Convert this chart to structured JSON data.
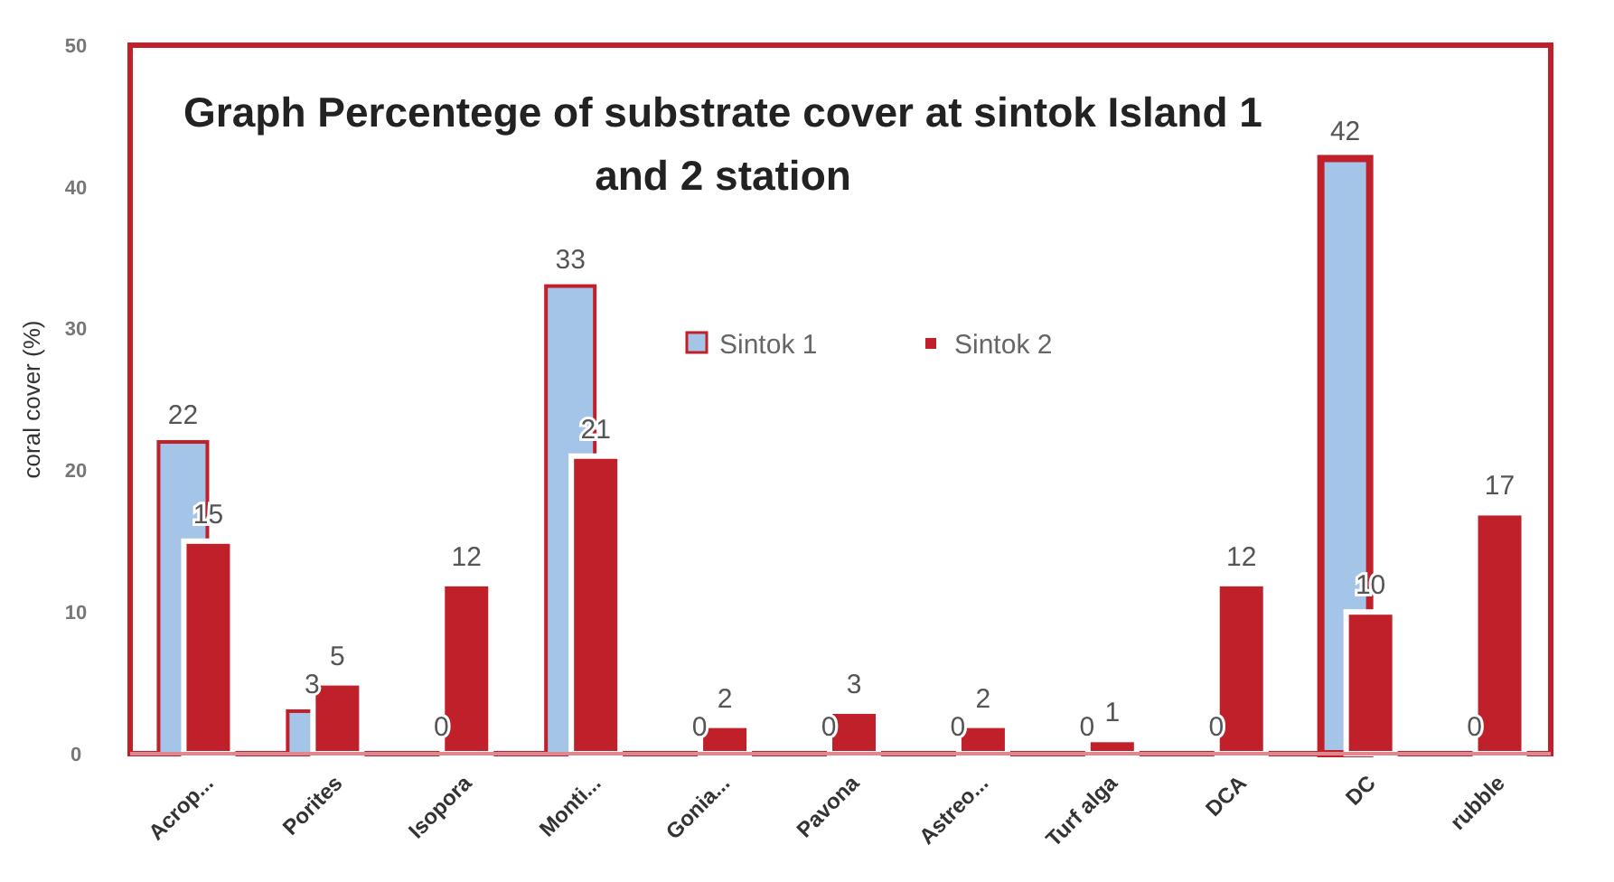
{
  "chart_data": {
    "type": "bar",
    "title": "Graph Percentege of substrate cover at sintok Island 1 and 2 station",
    "ylabel": "coral cover (%)",
    "categories": [
      "Acrop...",
      "Porites",
      "Isopora",
      "Monti...",
      "Gonia...",
      "Pavona",
      "Astreo...",
      "Turf alga",
      "DCA",
      "DC",
      "rubble"
    ],
    "series": [
      {
        "name": "Sintok 1",
        "color": "#a4c5e8",
        "values": [
          22,
          3,
          0,
          33,
          0,
          0,
          0,
          0,
          0,
          42,
          0
        ]
      },
      {
        "name": "Sintok 2",
        "color": "#c0202a",
        "values": [
          15,
          5,
          12,
          21,
          2,
          3,
          2,
          1,
          12,
          10,
          17
        ]
      }
    ],
    "ylim": [
      0,
      50
    ],
    "yticks": [
      0,
      10,
      20,
      30,
      40,
      50
    ],
    "data_labels": true,
    "legend": "center",
    "grid": false
  }
}
